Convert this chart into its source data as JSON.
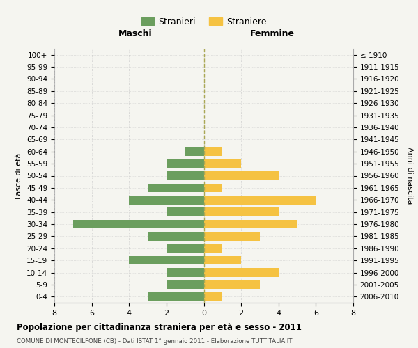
{
  "age_groups": [
    "0-4",
    "5-9",
    "10-14",
    "15-19",
    "20-24",
    "25-29",
    "30-34",
    "35-39",
    "40-44",
    "45-49",
    "50-54",
    "55-59",
    "60-64",
    "65-69",
    "70-74",
    "75-79",
    "80-84",
    "85-89",
    "90-94",
    "95-99",
    "100+"
  ],
  "birth_years": [
    "2006-2010",
    "2001-2005",
    "1996-2000",
    "1991-1995",
    "1986-1990",
    "1981-1985",
    "1976-1980",
    "1971-1975",
    "1966-1970",
    "1961-1965",
    "1956-1960",
    "1951-1955",
    "1946-1950",
    "1941-1945",
    "1936-1940",
    "1931-1935",
    "1926-1930",
    "1921-1925",
    "1916-1920",
    "1911-1915",
    "≤ 1910"
  ],
  "maschi": [
    3,
    2,
    2,
    4,
    2,
    3,
    7,
    2,
    4,
    3,
    2,
    2,
    1,
    0,
    0,
    0,
    0,
    0,
    0,
    0,
    0
  ],
  "femmine": [
    1,
    3,
    4,
    2,
    1,
    3,
    5,
    4,
    6,
    1,
    4,
    2,
    1,
    0,
    0,
    0,
    0,
    0,
    0,
    0,
    0
  ],
  "maschi_color": "#6b9e5e",
  "femmine_color": "#f5c242",
  "background_color": "#f5f5f0",
  "grid_color": "#cccccc",
  "title": "Popolazione per cittadinanza straniera per età e sesso - 2011",
  "subtitle": "COMUNE DI MONTECILFONE (CB) - Dati ISTAT 1° gennaio 2011 - Elaborazione TUTTITALIA.IT",
  "xlabel_left": "Maschi",
  "xlabel_right": "Femmine",
  "ylabel_left": "Fasce di età",
  "ylabel_right": "Anni di nascita",
  "legend_maschi": "Stranieri",
  "legend_femmine": "Straniere",
  "xlim": 8
}
